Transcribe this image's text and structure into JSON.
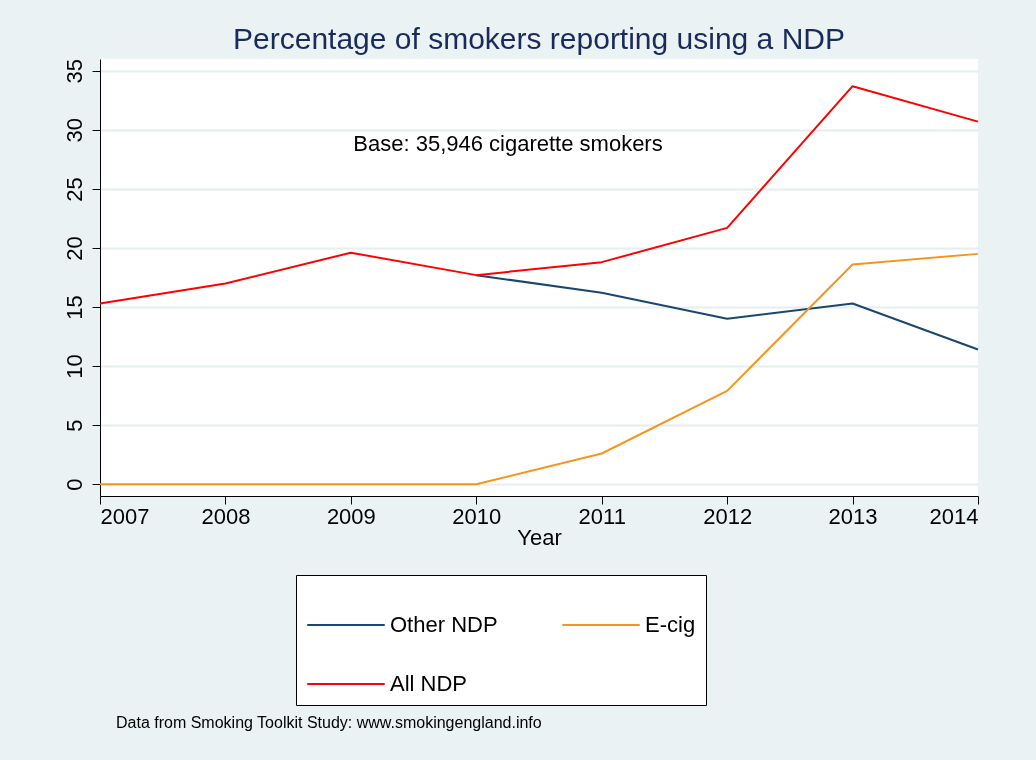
{
  "chart_data": {
    "type": "line",
    "title": "Percentage of smokers reporting using a NDP",
    "xlabel": "Year",
    "x": [
      2007,
      2008,
      2009,
      2010,
      2011,
      2012,
      2013,
      2014
    ],
    "series": [
      {
        "name": "Other NDP",
        "color": "#1a476f",
        "values": [
          null,
          null,
          null,
          17.7,
          16.2,
          14.0,
          15.3,
          11.4
        ]
      },
      {
        "name": "E-cig",
        "color": "#f7941d",
        "values": [
          0,
          0,
          0,
          0,
          2.6,
          7.9,
          18.6,
          19.5
        ]
      },
      {
        "name": "All NDP",
        "color": "#ff0000",
        "values": [
          15.3,
          17.0,
          19.6,
          17.7,
          18.8,
          21.7,
          33.7,
          30.7
        ]
      }
    ],
    "xlim": [
      2007,
      2014
    ],
    "xticks": [
      2007,
      2008,
      2009,
      2010,
      2011,
      2012,
      2013,
      2014
    ],
    "ylim": [
      -1,
      36
    ],
    "yticks": [
      0,
      5,
      10,
      15,
      20,
      25,
      30,
      35
    ],
    "grid": "y",
    "legend": "bottom",
    "annotations": [
      "Base: 35,946 cigarette smokers",
      "Data from Smoking Toolkit Study: www.smokingengland.info"
    ]
  }
}
